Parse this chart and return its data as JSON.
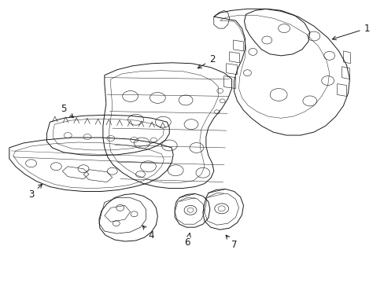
{
  "background_color": "#ffffff",
  "line_color": "#1a1a1a",
  "line_width": 0.7,
  "label_fontsize": 8.5,
  "figsize": [
    4.89,
    3.6
  ],
  "dpi": 100
}
